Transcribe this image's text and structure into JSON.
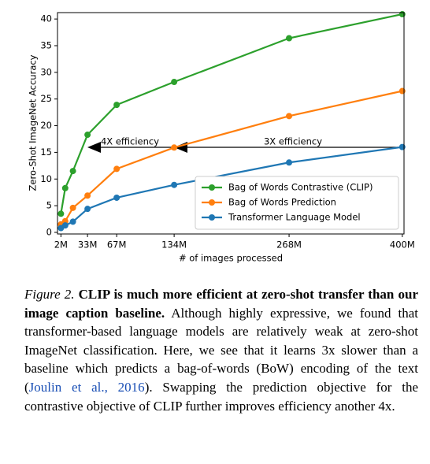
{
  "chart_data": {
    "type": "line",
    "xlabel": "# of images processed",
    "ylabel": "Zero-Shot ImageNet Accuracy",
    "x": [
      2,
      7,
      16,
      33,
      67,
      134,
      268,
      400
    ],
    "series": [
      {
        "name": "Bag of Words Contrastive (CLIP)",
        "color": "#2ca02c",
        "values": [
          3.5,
          8.3,
          11.5,
          18.3,
          23.9,
          28.2,
          36.4,
          40.9
        ]
      },
      {
        "name": "Bag of Words Prediction",
        "color": "#ff7f0e",
        "values": [
          1.5,
          2.1,
          4.6,
          6.9,
          11.9,
          15.9,
          21.8,
          26.5
        ]
      },
      {
        "name": "Transformer Language Model",
        "color": "#1f77b4",
        "values": [
          0.8,
          1.3,
          2.0,
          4.4,
          6.5,
          8.9,
          13.1,
          16.0
        ]
      }
    ],
    "xlim": [
      -2,
      402
    ],
    "ylim": [
      -0.3,
      41.2
    ],
    "xticks": [
      {
        "value": 2,
        "label": "2M"
      },
      {
        "value": 33,
        "label": "33M"
      },
      {
        "value": 67,
        "label": "67M"
      },
      {
        "value": 134,
        "label": "134M"
      },
      {
        "value": 268,
        "label": "268M"
      },
      {
        "value": 400,
        "label": "400M"
      }
    ],
    "yticks": [
      0,
      5,
      10,
      15,
      20,
      25,
      30,
      35,
      40
    ],
    "annotations": [
      "4X efficiency",
      "3X efficiency"
    ],
    "legend": "lower right"
  },
  "caption": {
    "label": "Figure 2.",
    "headline": "CLIP is much more efficient at zero-shot transfer than our image caption baseline.",
    "body_before": "Although highly expressive, we found that transformer-based language models are relatively weak at zero-shot ImageNet classification. Here, we see that it learns 3x slower than a baseline which predicts a bag-of-words (BoW) encoding of the text (",
    "citation": "Joulin et al., 2016",
    "body_after": "). Swapping the prediction objective for the contrastive objective of CLIP further improves efficiency another 4x."
  }
}
